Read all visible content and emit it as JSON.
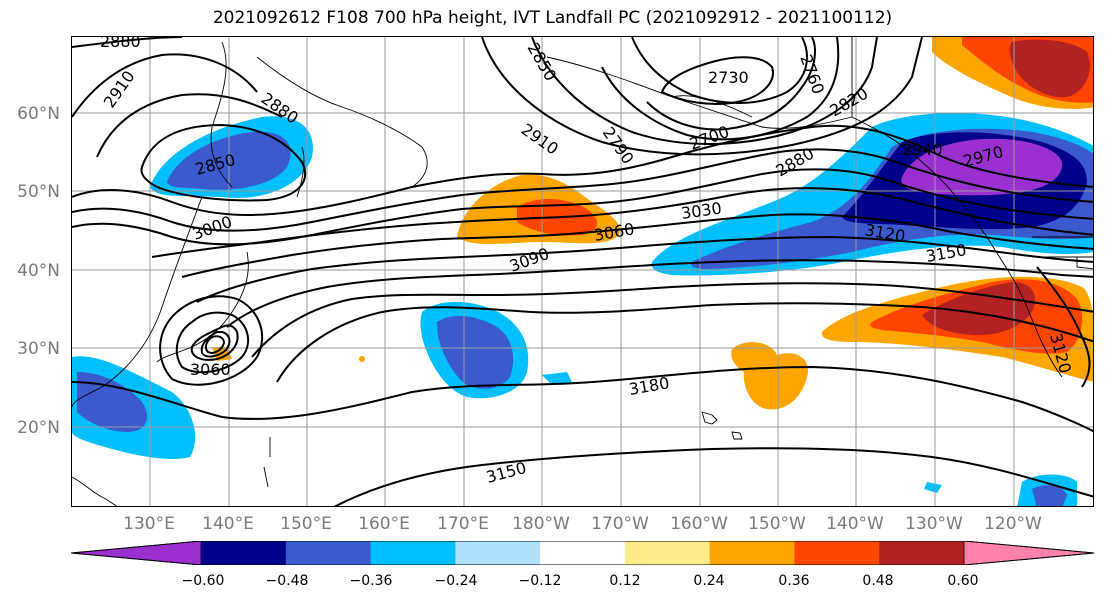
{
  "title": "2021092612 F108 700 hPa height, IVT Landfall PC (2021092912 - 2021100112)",
  "lat_labels": [
    "60°N",
    "50°N",
    "40°N",
    "30°N",
    "20°N"
  ],
  "lon_labels": [
    "130°E",
    "140°E",
    "150°E",
    "160°E",
    "170°E",
    "180°W",
    "170°W",
    "160°W",
    "150°W",
    "140°W",
    "130°W",
    "120°W"
  ],
  "contour_labels": {
    "c2880a": "2880",
    "c2910a": "2910",
    "c2880b": "2880",
    "c2850a": "2850",
    "c3000": "3000",
    "c2850b": "2850",
    "c2910b": "2910",
    "c2790": "2790",
    "c2730": "2730",
    "c2760": "2760",
    "c2700": "2700",
    "c2820": "2820",
    "c2940": "2940",
    "c2970": "2970",
    "c2880c": "2880",
    "c3030": "3030",
    "c3060": "3060",
    "c3090": "3090",
    "c3120": "3120",
    "c3150a": "3150",
    "c3060b": "3060",
    "c3180": "3180",
    "c3150b": "3150",
    "c3120b": "3120"
  },
  "colorbar": {
    "ticks": [
      "−0.60",
      "−0.48",
      "−0.36",
      "−0.24",
      "−0.12",
      "0.12",
      "0.24",
      "0.36",
      "0.48",
      "0.60"
    ],
    "colors": [
      "#9b30d0",
      "#00008b",
      "#3a5acd",
      "#00bfff",
      "#b0e2ff",
      "#ffffff",
      "#ffec8b",
      "#ffa500",
      "#ff4500",
      "#b22222",
      "#ff82ab"
    ]
  }
}
